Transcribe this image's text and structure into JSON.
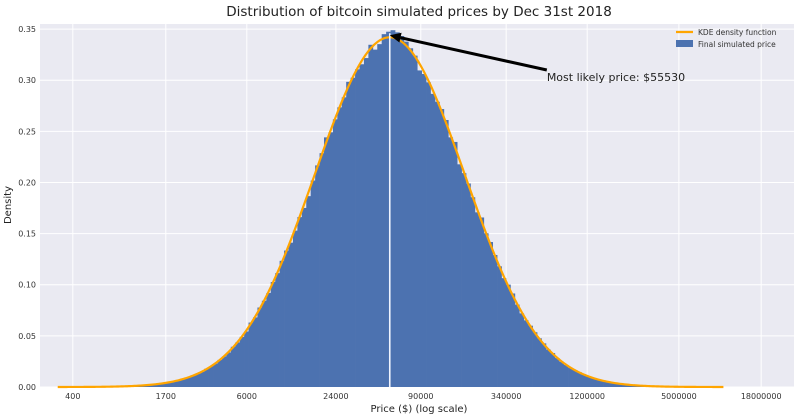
{
  "chart_data": {
    "type": "bar",
    "title": "Distribution of bitcoin simulated prices by Dec 31st 2018",
    "xlabel": "Price ($) (log scale)",
    "ylabel": "Density",
    "x_scale": "log",
    "xlim": [
      240,
      30000000
    ],
    "ylim": [
      0,
      0.355
    ],
    "grid": true,
    "legend_position": "top-right",
    "x_tick_values": [
      400,
      1700,
      6000,
      24000,
      90000,
      340000,
      1200000,
      5000000,
      18000000
    ],
    "x_tick_labels": [
      "400",
      "1700",
      "6000",
      "24000",
      "90000",
      "340000",
      "1200000",
      "5000000",
      "18000000"
    ],
    "y_tick_values": [
      0.0,
      0.05,
      0.1,
      0.15,
      0.2,
      0.25,
      0.3,
      0.35
    ],
    "y_tick_labels": [
      "0.00",
      "0.05",
      "0.10",
      "0.15",
      "0.20",
      "0.25",
      "0.30",
      "0.35"
    ],
    "legend": [
      {
        "label": "KDE density function",
        "kind": "line",
        "color": "#ffa500"
      },
      {
        "label": "Final simulated price",
        "kind": "patch",
        "color": "#4c72b0"
      }
    ],
    "kde": {
      "name": "KDE density function",
      "color": "#ffa500",
      "log10_center": 4.7445,
      "log10_sigma": 0.508,
      "peak": 0.342
    },
    "histogram": {
      "name": "Final simulated price",
      "color": "#4c72b0",
      "log10_bin_edges_range": [
        2.5,
        7.0
      ],
      "bin_count": 150
    },
    "mode_line": {
      "x": 55530,
      "color": "#f0f4ff"
    },
    "annotation": {
      "text": "Most likely price: $55530",
      "xy": [
        55530,
        0.342
      ],
      "xytext": [
        640000,
        0.31
      ]
    },
    "colors": {
      "plot_bg": "#eaeaf2",
      "grid": "#ffffff",
      "bar": "#4c72b0",
      "kde": "#ffa500",
      "arrow": "#000000"
    }
  }
}
